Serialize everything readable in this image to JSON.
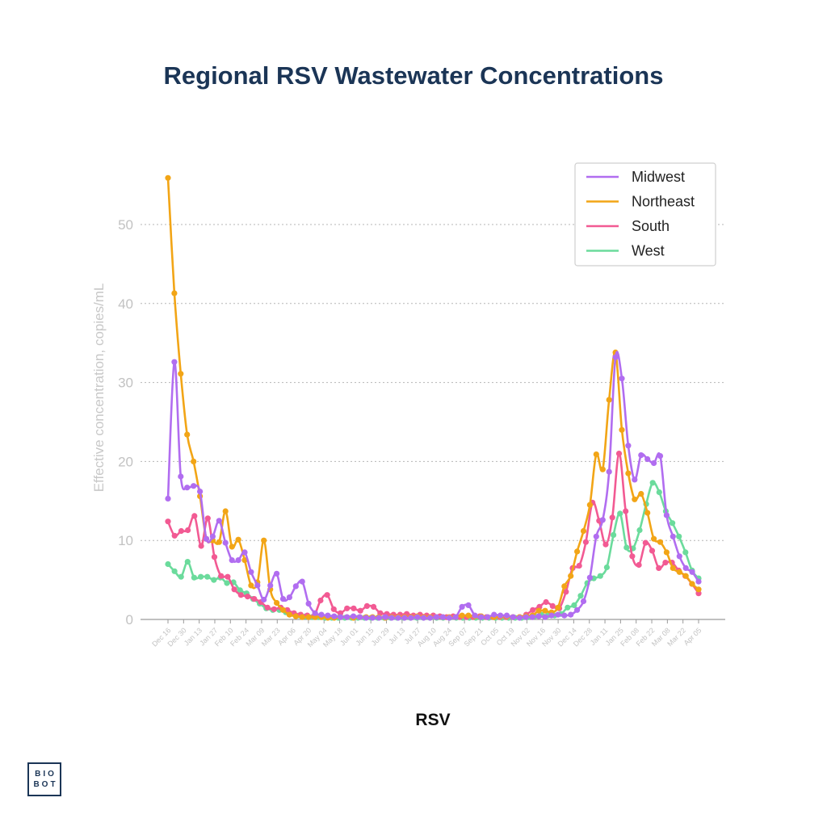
{
  "chart_data": {
    "type": "line",
    "title": "Regional RSV Wastewater Concentrations",
    "xlabel": "RSV",
    "ylabel": "Effective concentration, copies/mL",
    "ylim": [
      0,
      57
    ],
    "yticks": [
      0,
      10,
      20,
      30,
      40,
      50
    ],
    "grid": "horizontal dotted",
    "legend_position": "top-right",
    "x_ticks": [
      "Dec 16",
      "Dec 30",
      "Jan 13",
      "Jan 27",
      "Feb 10",
      "Feb 24",
      "Mar 09",
      "Mar 23",
      "Apr 06",
      "Apr 20",
      "May 04",
      "May 18",
      "Jun 01",
      "Jun 15",
      "Jun 29",
      "Jul 13",
      "Jul 27",
      "Aug 10",
      "Aug 24",
      "Sep 07",
      "Sep 21",
      "Oct 05",
      "Oct 19",
      "Nov 02",
      "Nov 16",
      "Nov 30",
      "Dec 14",
      "Dec 28",
      "Jan 11",
      "Jan 25",
      "Feb 08",
      "Feb 22",
      "Mar 08",
      "Mar 22",
      "Apr 05"
    ],
    "series": [
      {
        "name": "Midwest",
        "color": "#b16df0",
        "values": [
          15.3,
          32.6,
          18.1,
          16.7,
          16.9,
          16.2,
          10.2,
          10.5,
          12.5,
          9.7,
          7.5,
          7.5,
          8.5,
          6.0,
          4.3,
          2.5,
          4.3,
          5.8,
          2.6,
          2.8,
          4.2,
          4.8,
          2.0,
          0.8,
          0.6,
          0.5,
          0.4,
          0.3,
          0.3,
          0.4,
          0.3,
          0.2,
          0.2,
          0.2,
          0.3,
          0.2,
          0.2,
          0.2,
          0.2,
          0.3,
          0.2,
          0.2,
          0.3,
          0.3,
          0.2,
          0.3,
          1.6,
          1.8,
          0.5,
          0.3,
          0.3,
          0.6,
          0.5,
          0.5,
          0.3,
          0.2,
          0.3,
          0.3,
          0.4,
          0.3,
          0.5,
          0.6,
          0.5,
          0.6,
          1.2,
          2.3,
          5.3,
          10.5,
          12.6,
          18.7,
          33.2,
          30.5,
          22.0,
          17.7,
          20.8,
          20.3,
          19.8,
          20.7,
          13.2,
          10.5,
          8.0,
          6.5,
          6.0,
          4.8
        ]
      },
      {
        "name": "Northeast",
        "color": "#f2a516",
        "values": [
          55.9,
          41.3,
          31.1,
          23.4,
          20.0,
          15.6,
          10.2,
          10.0,
          9.8,
          13.7,
          9.2,
          10.1,
          7.5,
          4.3,
          4.7,
          10.0,
          3.8,
          2.1,
          1.2,
          0.6,
          0.4,
          0.3,
          0.3,
          0.3,
          0.3,
          0.2,
          0.2,
          0.3,
          0.3,
          0.2,
          0.3,
          0.3,
          0.3,
          0.3,
          0.2,
          0.3,
          0.3,
          0.3,
          0.3,
          0.4,
          0.3,
          0.3,
          0.3,
          0.3,
          0.3,
          0.3,
          0.5,
          0.5,
          0.4,
          0.4,
          0.3,
          0.3,
          0.4,
          0.4,
          0.3,
          0.3,
          0.4,
          0.5,
          1.1,
          1.1,
          0.9,
          1.5,
          4.2,
          5.5,
          8.6,
          11.2,
          14.5,
          20.9,
          19.0,
          27.8,
          33.8,
          24.0,
          18.5,
          15.2,
          15.9,
          13.5,
          10.2,
          9.8,
          8.5,
          6.5,
          6.0,
          5.5,
          4.5,
          3.8
        ]
      },
      {
        "name": "South",
        "color": "#f25a93",
        "values": [
          12.4,
          10.6,
          11.2,
          11.3,
          13.1,
          9.3,
          12.8,
          7.9,
          5.5,
          5.4,
          3.8,
          3.1,
          2.9,
          2.6,
          2.2,
          1.5,
          1.3,
          1.5,
          1.2,
          0.8,
          0.6,
          0.5,
          0.4,
          2.4,
          3.1,
          1.3,
          0.8,
          1.4,
          1.4,
          1.1,
          1.7,
          1.6,
          0.8,
          0.7,
          0.6,
          0.6,
          0.7,
          0.5,
          0.6,
          0.5,
          0.5,
          0.4,
          0.3,
          0.4,
          0.3,
          0.3,
          0.3,
          0.4,
          0.3,
          0.3,
          0.3,
          0.3,
          0.3,
          0.3,
          0.6,
          1.2,
          1.6,
          2.2,
          1.7,
          1.4,
          3.5,
          6.5,
          6.8,
          9.8,
          14.8,
          12.5,
          9.5,
          12.9,
          21.0,
          13.7,
          8.0,
          6.9,
          9.7,
          8.7,
          6.5,
          7.2,
          7.2,
          6.2,
          5.5,
          4.5,
          3.3
        ]
      },
      {
        "name": "West",
        "color": "#6bdb9c",
        "values": [
          7.0,
          6.1,
          5.4,
          7.3,
          5.3,
          5.4,
          5.4,
          5.0,
          5.3,
          4.6,
          4.7,
          3.7,
          3.3,
          2.6,
          2.0,
          1.4,
          1.2,
          1.2,
          0.9,
          0.7,
          0.5,
          0.4,
          0.3,
          0.3,
          0.2,
          0.2,
          0.2,
          0.2,
          0.2,
          0.2,
          0.2,
          0.2,
          0.2,
          0.2,
          0.2,
          0.2,
          0.2,
          0.2,
          0.2,
          0.2,
          0.2,
          0.2,
          0.2,
          0.2,
          0.2,
          0.2,
          0.2,
          0.2,
          0.2,
          0.2,
          0.2,
          0.2,
          0.2,
          0.2,
          0.2,
          0.3,
          0.4,
          0.6,
          0.5,
          0.5,
          0.7,
          1.5,
          1.8,
          3.0,
          4.6,
          5.2,
          5.5,
          6.6,
          10.7,
          13.4,
          9.1,
          9.0,
          11.3,
          14.6,
          17.3,
          16.1,
          13.7,
          12.2,
          10.5,
          8.5,
          6.2,
          5.2
        ]
      }
    ]
  },
  "logo": {
    "line1": "BIO",
    "line2": "BOT"
  }
}
